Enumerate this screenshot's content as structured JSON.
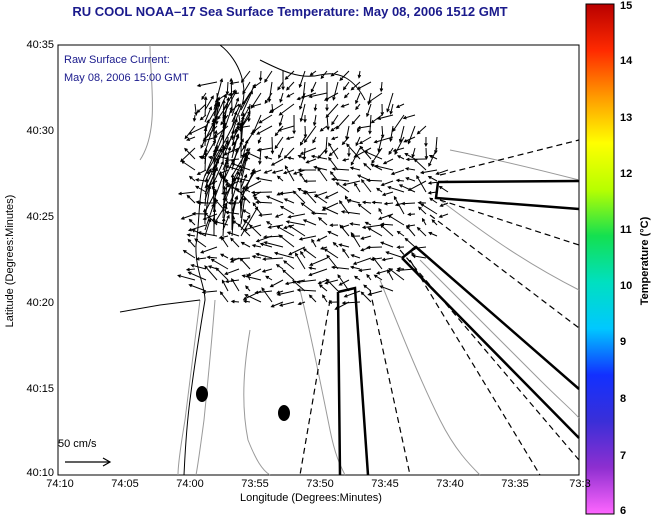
{
  "header": {
    "title": "RU COOL  NOAA–17  Sea Surface Temperature:  May 08, 2006 1512 GMT"
  },
  "annotation": {
    "line1": "Raw Surface Current:",
    "line2": "May 08, 2006 15:00 GMT"
  },
  "scale": {
    "label": "50 cm/s"
  },
  "axes": {
    "xlabel": "Longitude (Degrees:Minutes)",
    "ylabel": "Latitude (Degrees:Minutes)",
    "xticks": [
      "74:10",
      "74:05",
      "74:00",
      "73:55",
      "73:50",
      "73:45",
      "73:40",
      "73:35",
      "73:3"
    ],
    "yticks": [
      "40:35",
      "40:30",
      "40:25",
      "40:20",
      "40:15",
      "40:10"
    ]
  },
  "colorbar": {
    "label": "Temperature (°C)",
    "ticks": [
      "15",
      "14",
      "13",
      "12",
      "11",
      "10",
      "9",
      "8",
      "7",
      "6"
    ],
    "stops": [
      "#ff66ff",
      "#8e2fd0",
      "#3a2fd8",
      "#1230ff",
      "#00c8ff",
      "#00e0c0",
      "#14e050",
      "#b8ff00",
      "#ffff00",
      "#ff9a00",
      "#ff2a00",
      "#b80000"
    ]
  },
  "map": {
    "land_color": "#ffffff",
    "coast_color": "#000000",
    "bathy_color": "#9a9a9a"
  }
}
